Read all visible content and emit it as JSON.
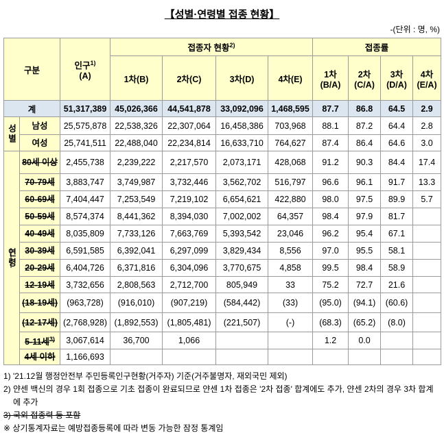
{
  "title": "【성별·연령별 접종 현황】",
  "unit": "-(단위 : 명, %)",
  "header": {
    "category": "구분",
    "population": {
      "label": "인구",
      "note": "1)",
      "sub": "(A)"
    },
    "vaccinated": {
      "label": "접종자 현황",
      "note": "2)",
      "columns": [
        "1차(B)",
        "2차(C)",
        "3차(D)",
        "4차(E)"
      ]
    },
    "rate": {
      "label": "접종률",
      "columns": [
        [
          "1차",
          "(B/A)"
        ],
        [
          "2차",
          "(C/A)"
        ],
        [
          "3차",
          "(D/A)"
        ],
        [
          "4차",
          "(E/A)"
        ]
      ]
    }
  },
  "total": {
    "label": "계",
    "cells": [
      "51,317,389",
      "45,026,366",
      "44,541,878",
      "33,092,096",
      "1,468,595",
      "87.7",
      "86.8",
      "64.5",
      "2.9"
    ]
  },
  "groups": [
    {
      "label": "성별",
      "rows": [
        {
          "label": "남성",
          "cells": [
            "25,575,878",
            "22,538,326",
            "22,307,064",
            "16,458,386",
            "703,968",
            "88.1",
            "87.2",
            "64.4",
            "2.8"
          ]
        },
        {
          "label": "여성",
          "cells": [
            "25,741,511",
            "22,488,040",
            "22,234,814",
            "16,633,710",
            "764,627",
            "87.4",
            "86.4",
            "64.6",
            "3.0"
          ]
        }
      ]
    },
    {
      "label": "연령",
      "rows": [
        {
          "label": "80세 이상",
          "cells": [
            "2,455,738",
            "2,239,222",
            "2,217,570",
            "2,073,171",
            "428,068",
            "91.2",
            "90.3",
            "84.4",
            "17.4"
          ]
        },
        {
          "label": "70-79세",
          "cells": [
            "3,883,747",
            "3,749,987",
            "3,732,446",
            "3,562,702",
            "516,797",
            "96.6",
            "96.1",
            "91.7",
            "13.3"
          ]
        },
        {
          "label": "60-69세",
          "cells": [
            "7,404,447",
            "7,253,549",
            "7,219,102",
            "6,654,621",
            "422,880",
            "98.0",
            "97.5",
            "89.9",
            "5.7"
          ]
        },
        {
          "label": "50-59세",
          "cells": [
            "8,574,374",
            "8,441,362",
            "8,394,030",
            "7,002,002",
            "64,357",
            "98.4",
            "97.9",
            "81.7",
            null
          ]
        },
        {
          "label": "40-49세",
          "cells": [
            "8,035,809",
            "7,733,126",
            "7,663,769",
            "5,393,542",
            "23,046",
            "96.2",
            "95.4",
            "67.1",
            null
          ]
        },
        {
          "label": "30-39세",
          "cells": [
            "6,591,585",
            "6,392,041",
            "6,297,099",
            "3,829,434",
            "8,556",
            "97.0",
            "95.5",
            "58.1",
            null
          ]
        },
        {
          "label": "20-29세",
          "cells": [
            "6,404,726",
            "6,371,816",
            "6,304,096",
            "3,770,675",
            "4,858",
            "99.5",
            "98.4",
            "58.9",
            null
          ]
        },
        {
          "label": "12-19세",
          "cells": [
            "3,732,656",
            "2,808,563",
            "2,712,700",
            "805,949",
            "33",
            "75.2",
            "72.7",
            "21.6",
            null
          ]
        },
        {
          "label": "(18-19세)",
          "cells": [
            "(963,728)",
            "(916,010)",
            "(907,219)",
            "(584,442)",
            "(33)",
            "(95.0)",
            "(94.1)",
            "(60.6)",
            null
          ]
        },
        {
          "label": "(12-17세)",
          "cells": [
            "(2,768,928)",
            "(1,892,553)",
            "(1,805,481)",
            "(221,507)",
            "(-)",
            "(68.3)",
            "(65.2)",
            "(8.0)",
            null
          ]
        },
        {
          "label": "5-11세",
          "note": "3)",
          "cells": [
            "3,067,614",
            "36,700",
            "1,066",
            null,
            null,
            "1.2",
            "0.0",
            null,
            null
          ]
        },
        {
          "label": "4세 이하",
          "cells": [
            "1,166,693",
            null,
            null,
            null,
            null,
            null,
            null,
            null,
            null
          ]
        }
      ]
    }
  ],
  "footnotes": [
    "1) '21.12월 행정안전부 주민등록인구현황(거주자) 기준(거주불명자, 재외국민 제외)",
    "2) 얀센 백신의 경우 1회 접종으로 기초 접종이 완료되므로 얀센 1차 접종은 '2차 접종' 합계에도 추가, 얀센 2차의 경우 3차 합계에 추가",
    "3) 국외 접종력 등 포함",
    "※ 상기통계자료는 예방접종등록에 따라 변동 가능한 잠정 통계임"
  ]
}
